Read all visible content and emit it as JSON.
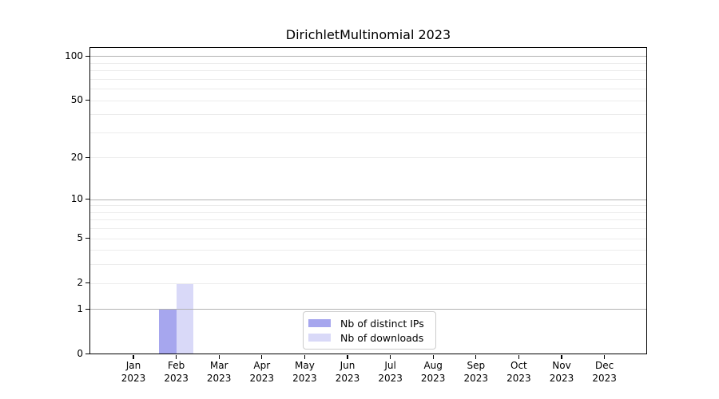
{
  "chart_data": {
    "type": "bar",
    "title": "DirichletMultinomial 2023",
    "categories": [
      "Jan 2023",
      "Feb 2023",
      "Mar 2023",
      "Apr 2023",
      "May 2023",
      "Jun 2023",
      "Jul 2023",
      "Aug 2023",
      "Sep 2023",
      "Oct 2023",
      "Nov 2023",
      "Dec 2023"
    ],
    "series": [
      {
        "name": "Nb of distinct IPs",
        "color": "#a6a6ee",
        "values": [
          0,
          1,
          0,
          0,
          0,
          0,
          0,
          0,
          0,
          0,
          0,
          0
        ]
      },
      {
        "name": "Nb of downloads",
        "color": "#d9d9f8",
        "values": [
          0,
          2,
          0,
          0,
          0,
          0,
          0,
          0,
          0,
          0,
          0,
          0
        ]
      }
    ],
    "xlabel": "",
    "ylabel": "",
    "yscale": "log1p",
    "ylim": [
      0,
      116
    ],
    "yticks": [
      0,
      1,
      2,
      5,
      10,
      20,
      50,
      100
    ],
    "grid": {
      "major": [
        1,
        10,
        100
      ],
      "minor": [
        2,
        3,
        4,
        5,
        6,
        7,
        8,
        9,
        20,
        30,
        40,
        50,
        60,
        70,
        80,
        90
      ]
    },
    "legend_position": "lower center",
    "colors": {
      "spine": "#000000",
      "grid_major": "#b2b2b2",
      "grid_minor": "#ececec",
      "legend_border": "#cccccc"
    }
  }
}
